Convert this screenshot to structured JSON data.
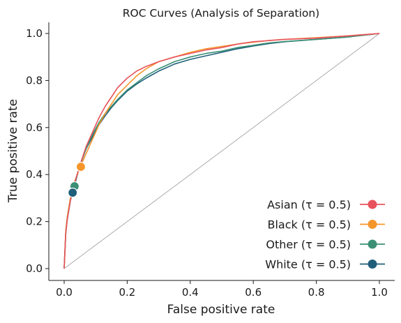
{
  "chart_data": {
    "type": "line",
    "title": "ROC Curves (Analysis of Separation)",
    "xlabel": "False positive rate",
    "ylabel": "True positive rate",
    "xlim": [
      -0.05,
      1.05
    ],
    "ylim": [
      -0.05,
      1.05
    ],
    "xticks": [
      "0.0",
      "0.2",
      "0.4",
      "0.6",
      "0.8",
      "1.0"
    ],
    "yticks": [
      "0.0",
      "0.2",
      "0.4",
      "0.6",
      "0.8",
      "1.0"
    ],
    "grid": false,
    "legend_position": "lower-right",
    "reference_line": {
      "x": [
        0,
        1
      ],
      "y": [
        0,
        1
      ],
      "color": "#999999"
    },
    "series": [
      {
        "name": "Asian (τ = 0.5)",
        "color": "#e8525b",
        "operating_point": [
          0.053,
          0.433
        ],
        "x": [
          0,
          0.005,
          0.01,
          0.02,
          0.03,
          0.05,
          0.07,
          0.09,
          0.11,
          0.13,
          0.15,
          0.17,
          0.2,
          0.23,
          0.26,
          0.3,
          0.35,
          0.4,
          0.45,
          0.5,
          0.55,
          0.6,
          0.65,
          0.7,
          0.8,
          0.9,
          0.95,
          1.0
        ],
        "y": [
          0,
          0.15,
          0.21,
          0.29,
          0.35,
          0.44,
          0.52,
          0.58,
          0.64,
          0.69,
          0.73,
          0.77,
          0.81,
          0.84,
          0.86,
          0.88,
          0.9,
          0.915,
          0.93,
          0.94,
          0.955,
          0.965,
          0.97,
          0.975,
          0.98,
          0.99,
          0.995,
          1.0
        ]
      },
      {
        "name": "Black (τ = 0.5)",
        "color": "#f5962a",
        "operating_point": [
          0.053,
          0.433
        ],
        "x": [
          0,
          0.005,
          0.01,
          0.02,
          0.03,
          0.05,
          0.07,
          0.09,
          0.11,
          0.13,
          0.15,
          0.17,
          0.2,
          0.23,
          0.26,
          0.3,
          0.35,
          0.4,
          0.45,
          0.5,
          0.55,
          0.6,
          0.65,
          0.7,
          0.8,
          0.9,
          0.95,
          1.0
        ],
        "y": [
          0,
          0.16,
          0.22,
          0.3,
          0.36,
          0.43,
          0.49,
          0.55,
          0.61,
          0.66,
          0.7,
          0.74,
          0.78,
          0.82,
          0.85,
          0.88,
          0.9,
          0.92,
          0.935,
          0.945,
          0.955,
          0.963,
          0.97,
          0.975,
          0.982,
          0.99,
          0.995,
          1.0
        ]
      },
      {
        "name": "Other (τ = 0.5)",
        "color": "#3a8f74",
        "operating_point": [
          0.033,
          0.35
        ],
        "x": [
          0,
          0.005,
          0.01,
          0.02,
          0.03,
          0.05,
          0.07,
          0.09,
          0.11,
          0.13,
          0.15,
          0.17,
          0.2,
          0.23,
          0.26,
          0.3,
          0.35,
          0.4,
          0.45,
          0.5,
          0.55,
          0.6,
          0.65,
          0.7,
          0.8,
          0.9,
          0.95,
          1.0
        ],
        "y": [
          0,
          0.16,
          0.22,
          0.3,
          0.35,
          0.44,
          0.51,
          0.57,
          0.62,
          0.66,
          0.69,
          0.72,
          0.76,
          0.79,
          0.82,
          0.85,
          0.88,
          0.9,
          0.915,
          0.925,
          0.94,
          0.95,
          0.96,
          0.966,
          0.975,
          0.985,
          0.993,
          1.0
        ]
      },
      {
        "name": "White (τ = 0.5)",
        "color": "#1f5f7a",
        "operating_point": [
          0.027,
          0.323
        ],
        "x": [
          0,
          0.005,
          0.01,
          0.02,
          0.03,
          0.05,
          0.07,
          0.09,
          0.11,
          0.13,
          0.15,
          0.17,
          0.2,
          0.23,
          0.26,
          0.3,
          0.35,
          0.4,
          0.45,
          0.5,
          0.55,
          0.6,
          0.65,
          0.7,
          0.8,
          0.9,
          0.95,
          1.0
        ],
        "y": [
          0,
          0.15,
          0.21,
          0.29,
          0.34,
          0.44,
          0.51,
          0.56,
          0.61,
          0.65,
          0.685,
          0.715,
          0.755,
          0.785,
          0.81,
          0.84,
          0.87,
          0.89,
          0.905,
          0.92,
          0.935,
          0.947,
          0.957,
          0.965,
          0.975,
          0.985,
          0.993,
          1.0
        ]
      }
    ]
  }
}
